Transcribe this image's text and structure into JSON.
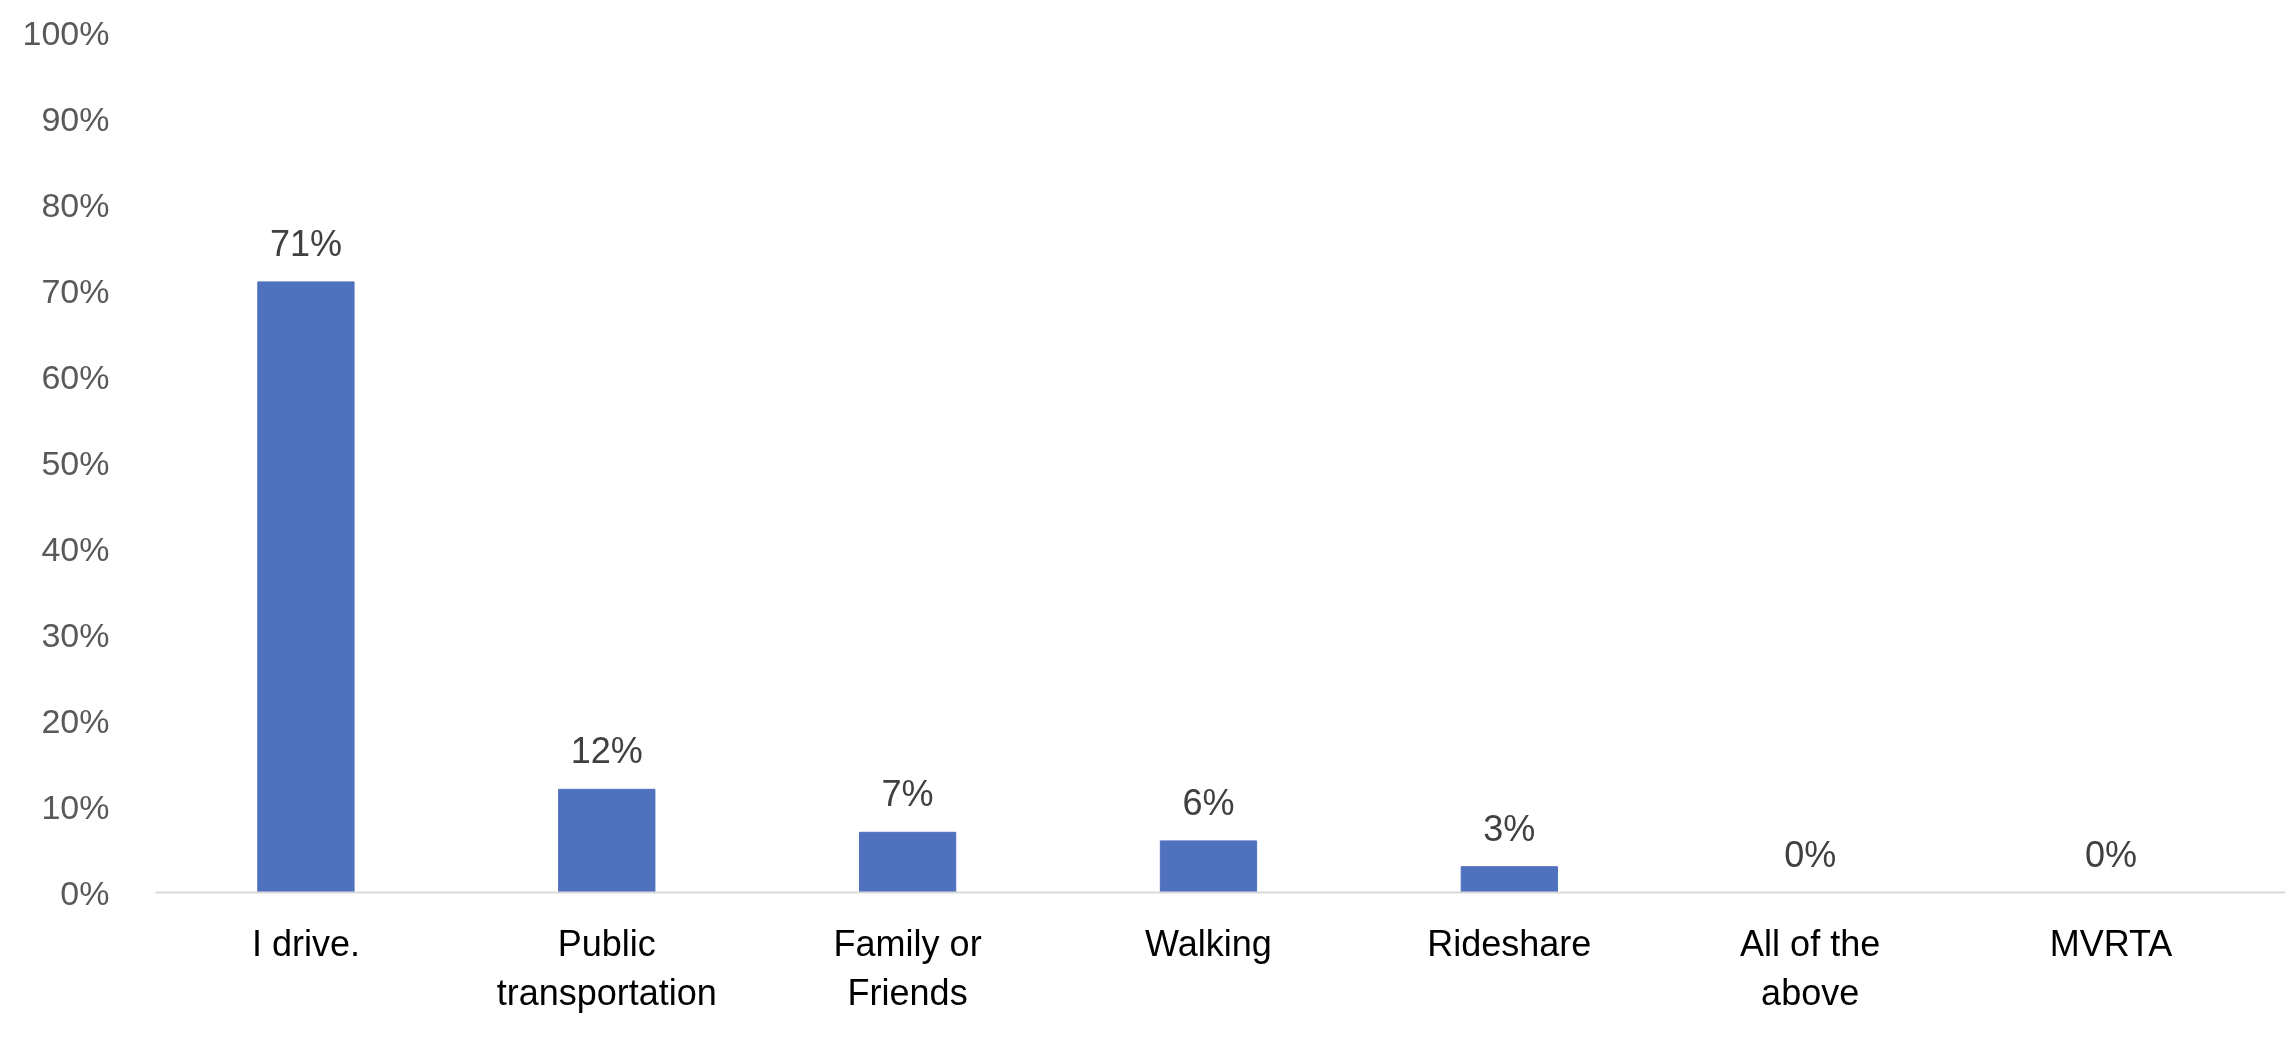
{
  "chart_data": {
    "type": "bar",
    "categories": [
      "I drive.",
      "Public transportation",
      "Family or Friends",
      "Walking",
      "Rideshare",
      "All of the above",
      "MVRTA"
    ],
    "values": [
      71,
      12,
      7,
      6,
      3,
      0,
      0
    ],
    "color": "#4f71be",
    "value_labels": [
      "71%",
      "12%",
      "7%",
      "6%",
      "3%",
      "0%",
      "0%"
    ],
    "ylim": [
      0,
      100
    ],
    "yticks": [
      {
        "value": 0,
        "label": "0%"
      },
      {
        "value": 10,
        "label": "10%"
      },
      {
        "value": 20,
        "label": "20%"
      },
      {
        "value": 30,
        "label": "30%"
      },
      {
        "value": 40,
        "label": "40%"
      },
      {
        "value": 50,
        "label": "50%"
      },
      {
        "value": 60,
        "label": "60%"
      },
      {
        "value": 70,
        "label": "70%"
      },
      {
        "value": 80,
        "label": "80%"
      },
      {
        "value": 90,
        "label": "90%"
      },
      {
        "value": 100,
        "label": "100%"
      }
    ]
  }
}
